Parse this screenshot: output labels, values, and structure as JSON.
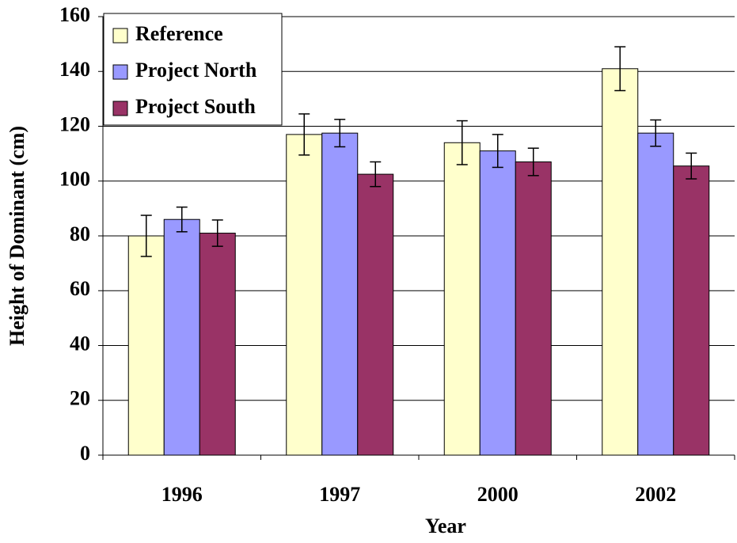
{
  "chart_data": {
    "type": "bar",
    "x_label": "Year",
    "y_label": "Height of Dominant (cm)",
    "categories": [
      "1996",
      "1997",
      "2000",
      "2002"
    ],
    "series": [
      {
        "name": "Reference",
        "color": "#ffffcc",
        "values": [
          80,
          117,
          114,
          141
        ],
        "errors": [
          7.5,
          7.5,
          8,
          8
        ]
      },
      {
        "name": "Project North",
        "color": "#9999ff",
        "values": [
          86,
          117.5,
          111,
          117.5
        ],
        "errors": [
          4.5,
          5,
          6,
          4.8
        ]
      },
      {
        "name": "Project South",
        "color": "#993366",
        "values": [
          81,
          102.5,
          107,
          105.5
        ],
        "errors": [
          4.8,
          4.5,
          5,
          4.7
        ]
      }
    ],
    "ylim": [
      0,
      160
    ],
    "yticks": [
      0,
      20,
      40,
      60,
      80,
      100,
      120,
      140,
      160
    ],
    "grid": true,
    "legend": "top-left"
  }
}
